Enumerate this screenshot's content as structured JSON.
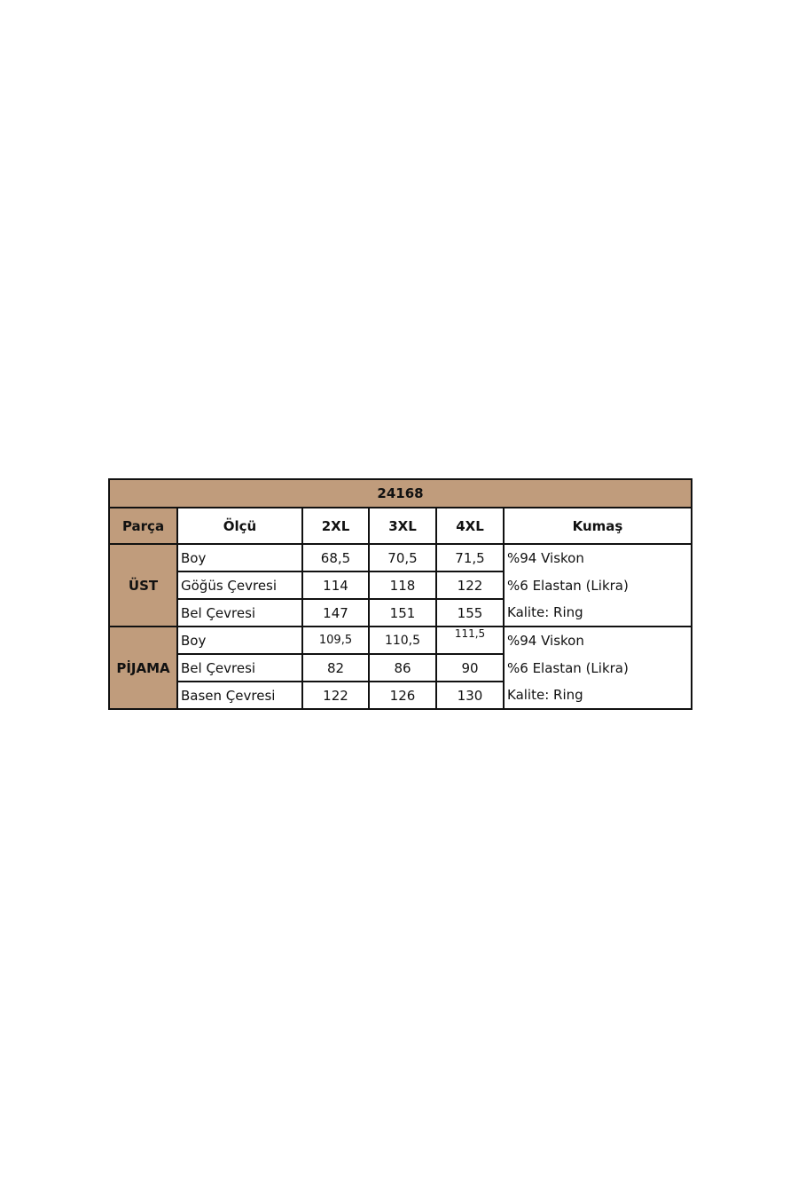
{
  "title": "24168",
  "headers": [
    "Parça",
    "Ölçü",
    "2XL",
    "3XL",
    "4XL",
    "Kumaş"
  ],
  "groups": [
    {
      "part": "ÜST",
      "rows": [
        {
          "measure": "Boy",
          "values": [
            "68,5",
            "70,5",
            "71,5"
          ]
        },
        {
          "measure": "Göğüs Çevresi",
          "values": [
            "114",
            "118",
            "122"
          ]
        },
        {
          "measure": "Bel Çevresi",
          "values": [
            "147",
            "151",
            "155"
          ]
        }
      ],
      "fabric": [
        "%94 Viskon",
        "%6 Elastan (Likra)",
        "Kalite: Ring"
      ]
    },
    {
      "part": "PİJAMA",
      "rows": [
        {
          "measure": "Boy",
          "values": [
            "109,5",
            "110,5",
            "111,5"
          ]
        },
        {
          "measure": "Bel Çevresi",
          "values": [
            "82",
            "86",
            "90"
          ]
        },
        {
          "measure": "Basen Çevresi",
          "values": [
            "122",
            "126",
            "130"
          ]
        }
      ],
      "fabric": [
        "%94 Viskon",
        "%6 Elastan (Likra)",
        "Kalite: Ring"
      ]
    }
  ],
  "colors": {
    "header_bg": "#c09c7c",
    "border": "#111111"
  }
}
